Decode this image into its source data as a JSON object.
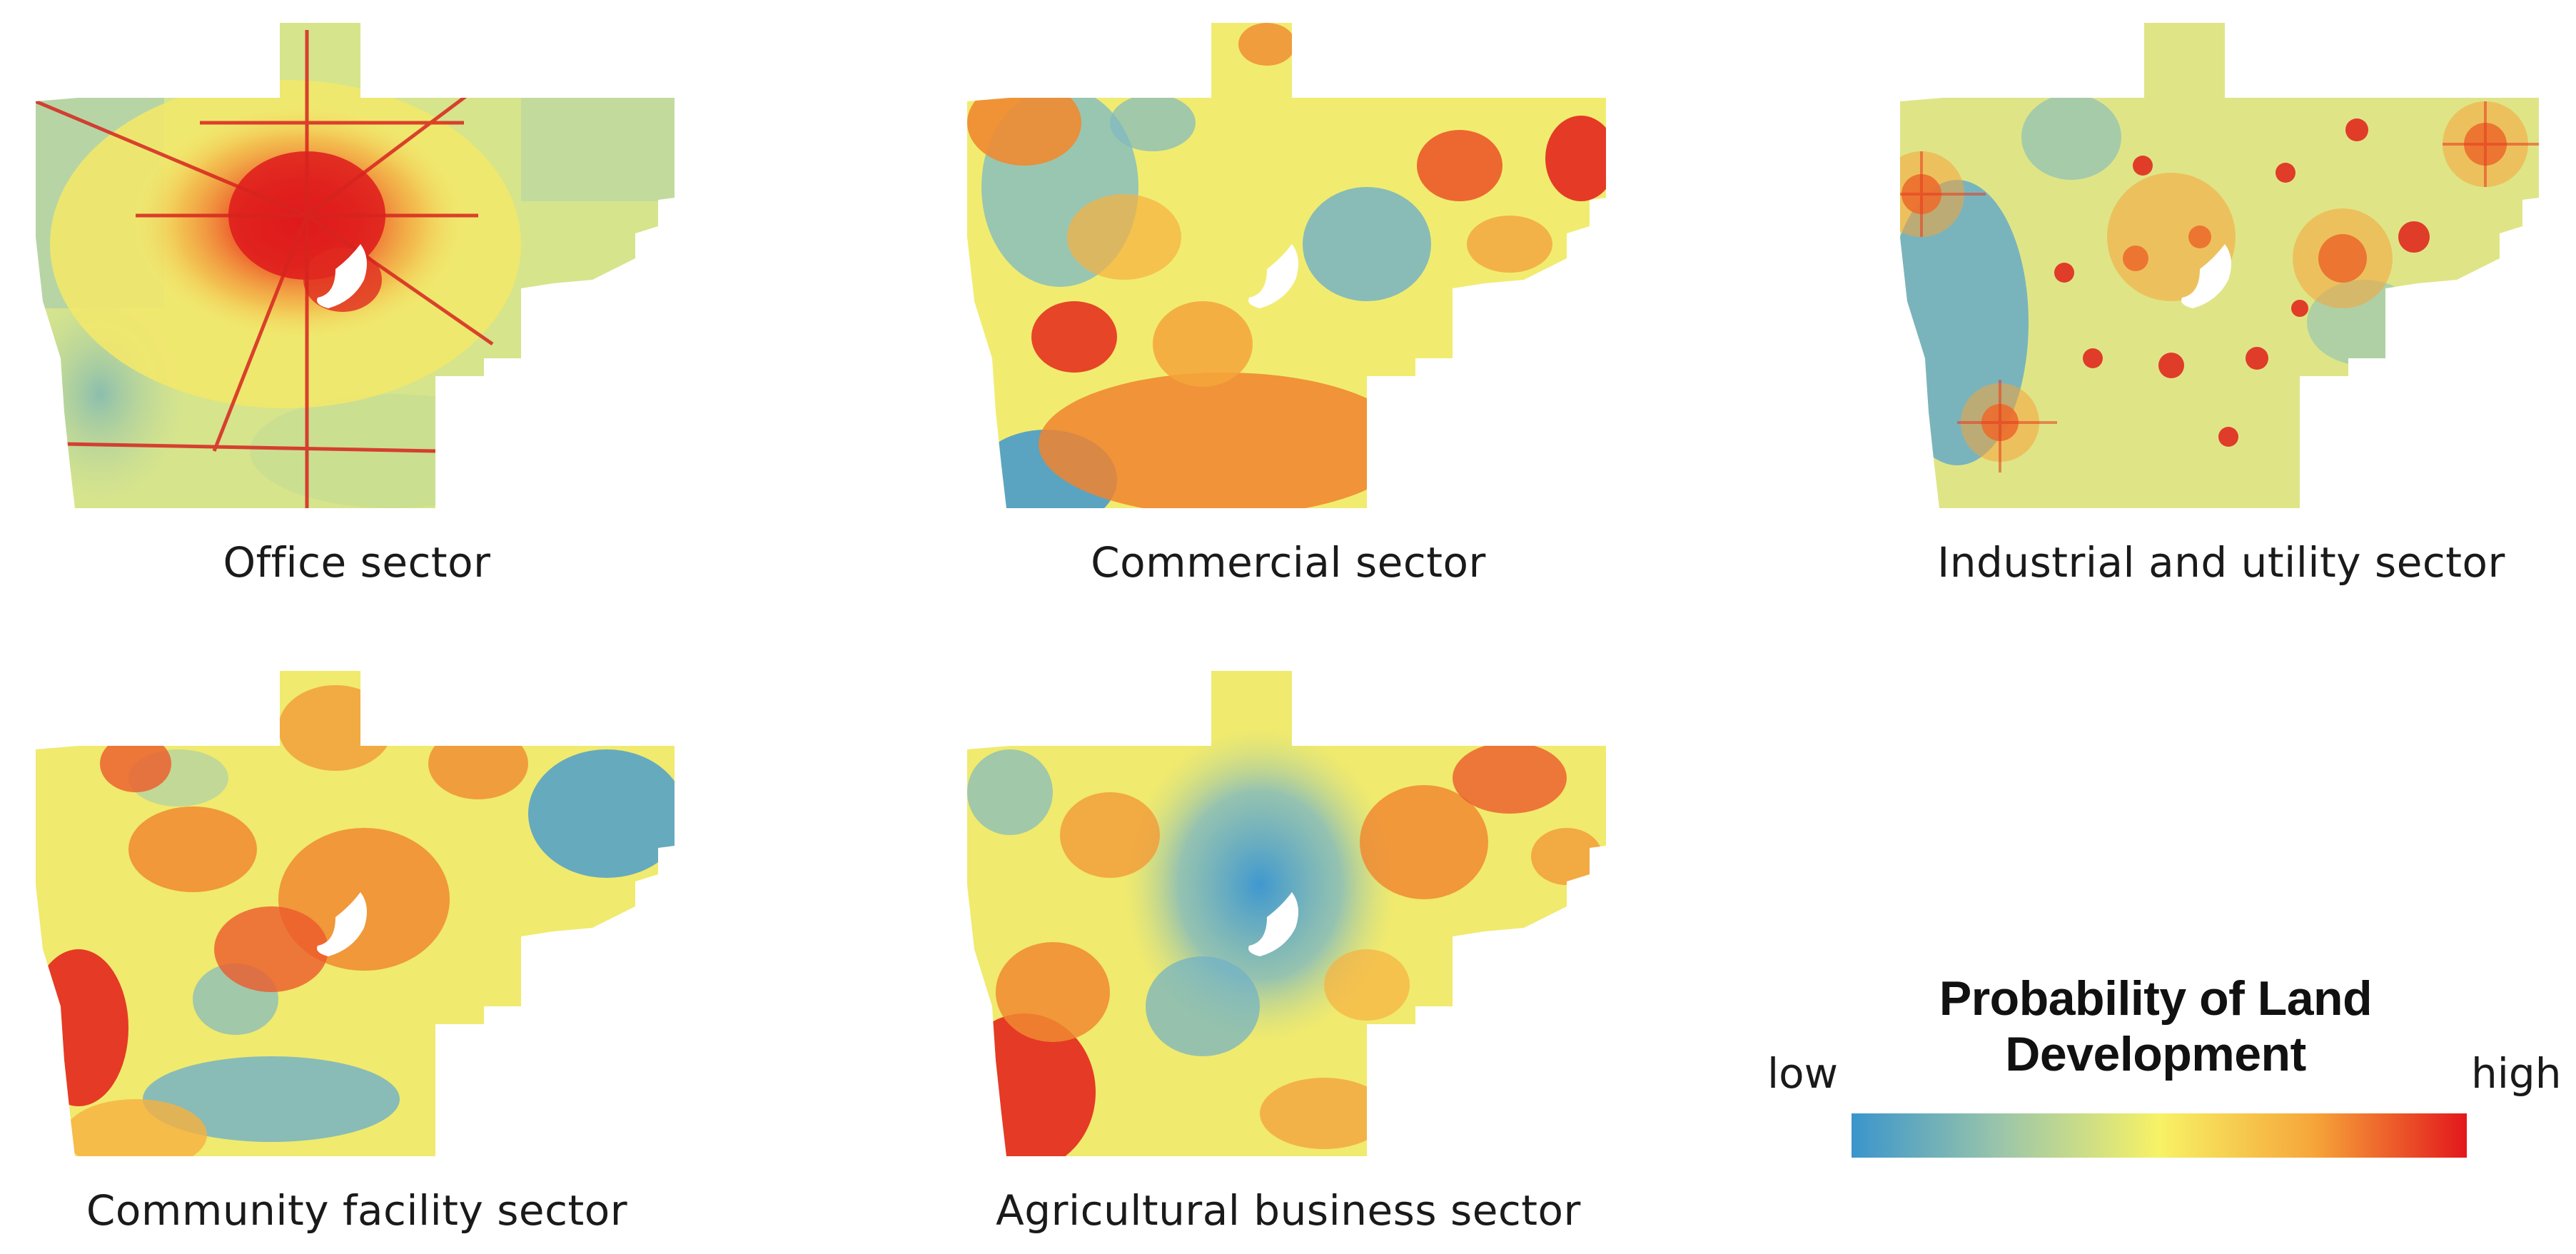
{
  "figure": {
    "type": "small-multiple choropleth maps",
    "region_shape": "same county outline repeated in each panel"
  },
  "panels": [
    {
      "caption": "Office sector",
      "pattern": "high probability concentrated at central city and along radiating road corridors; low toward edges",
      "dominant": "yellow-green",
      "hotspots": "center"
    },
    {
      "caption": "Commercial sector",
      "pattern": "scattered orange-red patches across county; blue patches in west and south-west",
      "dominant": "yellow",
      "hotspots": "dispersed"
    },
    {
      "caption": "Industrial and utility sector",
      "pattern": "many point-like red hotspots with cross-shaped road halos; blue in west",
      "dominant": "yellow-blue",
      "hotspots": "many small points"
    },
    {
      "caption": "Community facility sector",
      "pattern": "orange patches around center and west edge; blue in east and south",
      "dominant": "yellow-orange",
      "hotspots": "west and center"
    },
    {
      "caption": "Agricultural business sector",
      "pattern": "low probability (blue) at urban center; high probability toward periphery, strongest in south-west",
      "dominant": "yellow",
      "hotspots": "periphery"
    }
  ],
  "legend": {
    "title": "Probability of Land Development",
    "low_label": "low",
    "high_label": "high",
    "colors": {
      "low": "#3a95cc",
      "low_mid": "#9ec7a8",
      "mid": "#f7f266",
      "mid_high": "#f6a639",
      "high": "#e3171c"
    }
  },
  "palette": {
    "blue": "#3f98cf",
    "blue_green": "#8fc2b8",
    "green": "#c2d88f",
    "yellow_green": "#dde886",
    "yellow": "#f4ef6c",
    "orange": "#f5a43b",
    "red_orange": "#ec5a2a",
    "red": "#de1a1c",
    "water": "#ffffff"
  }
}
